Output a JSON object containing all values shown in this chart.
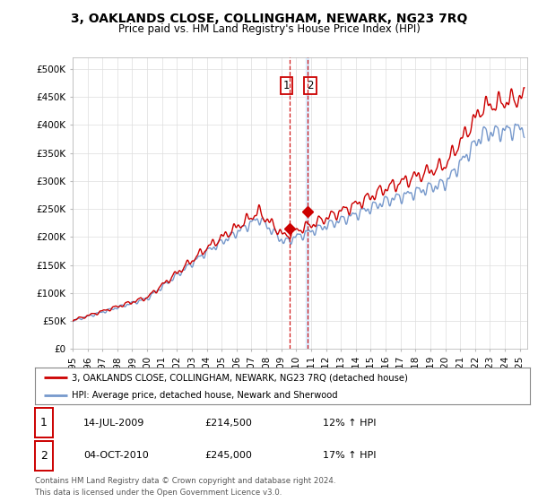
{
  "title": "3, OAKLANDS CLOSE, COLLINGHAM, NEWARK, NG23 7RQ",
  "subtitle": "Price paid vs. HM Land Registry's House Price Index (HPI)",
  "ylabel_ticks": [
    "£0",
    "£50K",
    "£100K",
    "£150K",
    "£200K",
    "£250K",
    "£300K",
    "£350K",
    "£400K",
    "£450K",
    "£500K"
  ],
  "ytick_values": [
    0,
    50000,
    100000,
    150000,
    200000,
    250000,
    300000,
    350000,
    400000,
    450000,
    500000
  ],
  "ylim": [
    0,
    520000
  ],
  "xlim_start": 1995.0,
  "xlim_end": 2025.5,
  "red_line_color": "#cc0000",
  "blue_line_color": "#7799cc",
  "transaction1_x": 2009.54,
  "transaction1_y": 214500,
  "transaction2_x": 2010.75,
  "transaction2_y": 245000,
  "vline_color": "#cc0000",
  "vline2_band_color": "#ddeeff",
  "marker_color": "#cc0000",
  "legend_red_label": "3, OAKLANDS CLOSE, COLLINGHAM, NEWARK, NG23 7RQ (detached house)",
  "legend_blue_label": "HPI: Average price, detached house, Newark and Sherwood",
  "table_rows": [
    {
      "num": "1",
      "date": "14-JUL-2009",
      "price": "£214,500",
      "hpi": "12% ↑ HPI"
    },
    {
      "num": "2",
      "date": "04-OCT-2010",
      "price": "£245,000",
      "hpi": "17% ↑ HPI"
    }
  ],
  "footer": "Contains HM Land Registry data © Crown copyright and database right 2024.\nThis data is licensed under the Open Government Licence v3.0.",
  "background_color": "#ffffff",
  "grid_color": "#dddddd",
  "title_fontsize": 10,
  "subtitle_fontsize": 8.5,
  "tick_fontsize": 7.5
}
